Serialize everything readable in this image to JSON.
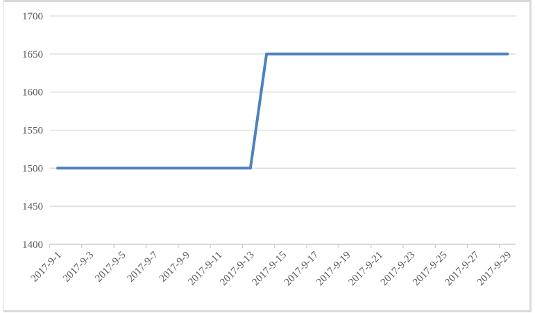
{
  "chart_data": {
    "type": "line",
    "title": "",
    "xlabel": "",
    "ylabel": "",
    "x": [
      "2017-9-1",
      "2017-9-2",
      "2017-9-3",
      "2017-9-4",
      "2017-9-5",
      "2017-9-6",
      "2017-9-7",
      "2017-9-8",
      "2017-9-9",
      "2017-9-10",
      "2017-9-11",
      "2017-9-12",
      "2017-9-13",
      "2017-9-14",
      "2017-9-15",
      "2017-9-16",
      "2017-9-17",
      "2017-9-18",
      "2017-9-19",
      "2017-9-20",
      "2017-9-21",
      "2017-9-22",
      "2017-9-23",
      "2017-9-24",
      "2017-9-25",
      "2017-9-26",
      "2017-9-27",
      "2017-9-28",
      "2017-9-29"
    ],
    "series": [
      {
        "name": "value",
        "values": [
          1500,
          1500,
          1500,
          1500,
          1500,
          1500,
          1500,
          1500,
          1500,
          1500,
          1500,
          1500,
          1500,
          1650,
          1650,
          1650,
          1650,
          1650,
          1650,
          1650,
          1650,
          1650,
          1650,
          1650,
          1650,
          1650,
          1650,
          1650,
          1650
        ],
        "color": "#4F81BD"
      }
    ],
    "ylim": [
      1400,
      1700
    ],
    "yticks": [
      "1400",
      "1450",
      "1500",
      "1550",
      "1600",
      "1650",
      "1700"
    ],
    "xtick_labels": [
      "2017-9-1",
      "2017-9-3",
      "2017-9-5",
      "2017-9-7",
      "2017-9-9",
      "2017-9-11",
      "2017-9-13",
      "2017-9-15",
      "2017-9-17",
      "2017-9-19",
      "2017-9-21",
      "2017-9-23",
      "2017-9-25",
      "2017-9-27",
      "2017-9-29"
    ],
    "xtick_label_interval": 2,
    "grid": "horizontal",
    "legend": "none"
  },
  "colors": {
    "gridline": "#d9d9d9",
    "axis_line": "#c9c9c9",
    "tick_mark": "#c9c9c9",
    "tick_label": "#595959",
    "chart_border": "#d9d9d9",
    "background": "#ffffff"
  }
}
